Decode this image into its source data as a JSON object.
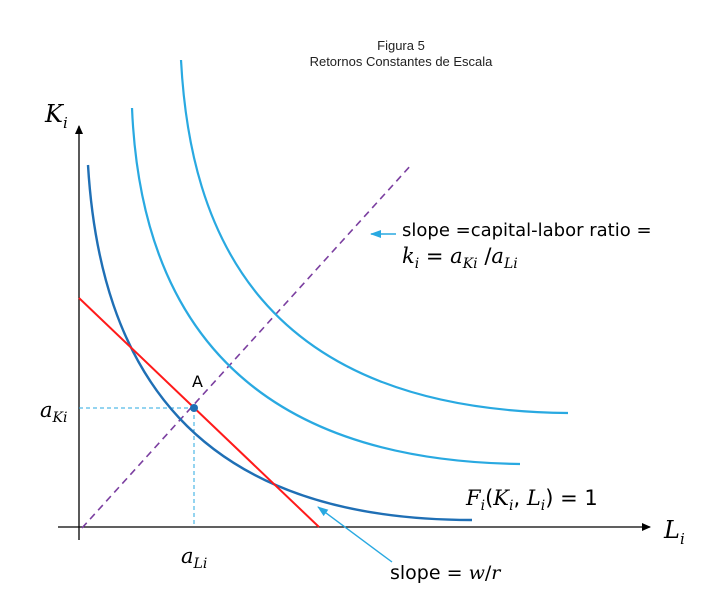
{
  "title": {
    "line1": "Figura 5",
    "line2": "Retornos Constantes de Escala"
  },
  "axes": {
    "y_label": "K",
    "y_sub": "i",
    "x_label": "L",
    "x_sub": "i"
  },
  "point": {
    "label": "A",
    "y_tick": "a",
    "y_tick_sub": "Ki",
    "x_tick": "a",
    "x_tick_sub": "Li"
  },
  "annotations": {
    "ray_line1": "slope =capital-labor ratio =",
    "ray_line2_k": "k",
    "ray_line2_k_sub": "i",
    "ray_line2_eq": " = ",
    "ray_line2_aK": "a",
    "ray_line2_aK_sub": "Ki",
    "ray_line2_div": " /",
    "ray_line2_aL": "a",
    "ray_line2_aL_sub": "Li",
    "isoquant_F": "F",
    "isoquant_F_sub": "i",
    "isoquant_args_open": "(",
    "isoquant_K": "K",
    "isoquant_K_sub": "i",
    "isoquant_comma": ", ",
    "isoquant_L": "L",
    "isoquant_L_sub": "i",
    "isoquant_close": ") = 1",
    "budget_prefix": "slope = ",
    "budget_w": "w",
    "budget_slash": "/",
    "budget_r": "r"
  },
  "colors": {
    "isoquant_inner": "#1f6fb5",
    "isoquant_outer": "#29a9e1",
    "budget_line": "#ff1a1a",
    "ray": "#7b3fa0",
    "guides": "#29a9e1",
    "arrow": "#29a9e1",
    "point": "#1f6fb5"
  }
}
